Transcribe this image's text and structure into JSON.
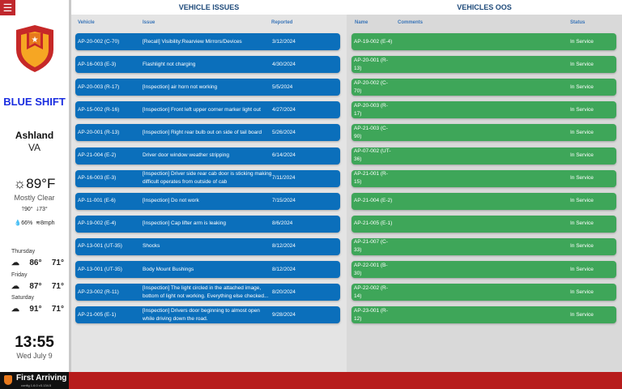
{
  "sidebar": {
    "shift": "BLUE SHIFT",
    "city": "Ashland",
    "state": "VA",
    "temp": "89°F",
    "condition": "Mostly Clear",
    "high": "90°",
    "low": "73°",
    "humidity": "66%",
    "wind": "8mph",
    "forecast": [
      {
        "day": "Thursday",
        "high": "86°",
        "low": "71°"
      },
      {
        "day": "Friday",
        "high": "87°",
        "low": "71°"
      },
      {
        "day": "Saturday",
        "high": "91°",
        "low": "71°"
      }
    ],
    "time": "13:55",
    "date": "Wed July 9"
  },
  "footer": {
    "brand": "First Arriving",
    "version": "config 1.6.0   v3.134.5"
  },
  "issues": {
    "title": "VEHICLE ISSUES",
    "headers": [
      "Vehicle",
      "Issue",
      "Reported"
    ],
    "rows": [
      {
        "vehicle": "AP-20-002 (C-70)",
        "issue": "[Recall] Visibility:Rearview Mirrors/Devices",
        "reported": "3/12/2024"
      },
      {
        "vehicle": "AP-16-003 (E-3)",
        "issue": "Flashlight not charging",
        "reported": "4/30/2024"
      },
      {
        "vehicle": "AP-20-003 (R-17)",
        "issue": "[Inspection] air horn not working",
        "reported": "5/5/2024"
      },
      {
        "vehicle": "AP-15-002 (R-16)",
        "issue": "[Inspection] Front left upper corner marker light out",
        "reported": "4/27/2024"
      },
      {
        "vehicle": "AP-20-001 (R-13)",
        "issue": "[Inspection] Right rear bulb out on side of tail board",
        "reported": "5/26/2024"
      },
      {
        "vehicle": "AP-21-004 (E-2)",
        "issue": "Driver door window weather stripping",
        "reported": "6/14/2024"
      },
      {
        "vehicle": "AP-16-003 (E-3)",
        "issue": "[Inspection] Driver side rear cab door is sticking making difficult operates from outside of cab",
        "reported": "7/11/2024"
      },
      {
        "vehicle": "AP-11-001 (E-6)",
        "issue": "[Inspection] Do not work",
        "reported": "7/15/2024"
      },
      {
        "vehicle": "AP-19-002 (E-4)",
        "issue": "[Inspection] Cap lifter arm is leaking",
        "reported": "8/6/2024"
      },
      {
        "vehicle": "AP-13-001 (UT-35)",
        "issue": "Shocks",
        "reported": "8/12/2024"
      },
      {
        "vehicle": "AP-13-001 (UT-35)",
        "issue": "Body Mount Bushings",
        "reported": "8/12/2024"
      },
      {
        "vehicle": "AP-23-002 (R-11)",
        "issue": "[Inspection] The light circled in the attached image, bottom of light not working. Everything else checked...",
        "reported": "8/20/2024"
      },
      {
        "vehicle": "AP-21-005 (E-1)",
        "issue": "[Inspection] Drivers door beginning to almost open while driving down the road.",
        "reported": "9/28/2024"
      }
    ]
  },
  "oos": {
    "title": "VEHICLES OOS",
    "headers": [
      "Name",
      "Comments",
      "Status"
    ],
    "rows": [
      {
        "name": "AP-19-002 (E-4)",
        "status": "In Service"
      },
      {
        "name": "AP-20-001 (R-13)",
        "status": "In Service"
      },
      {
        "name": "AP-20-002 (C-70)",
        "status": "In Service"
      },
      {
        "name": "AP-20-003 (R-17)",
        "status": "In Service"
      },
      {
        "name": "AP-21-003 (C-90)",
        "status": "In Service"
      },
      {
        "name": "AP-07-002 (UT-36)",
        "status": "In Service"
      },
      {
        "name": "AP-21-001 (R-15)",
        "status": "In Service"
      },
      {
        "name": "AP-21-004 (E-2)",
        "status": "In Service"
      },
      {
        "name": "AP-21-005 (E-1)",
        "status": "In Service"
      },
      {
        "name": "AP-21-007 (C-33)",
        "status": "In Service"
      },
      {
        "name": "AP-22-001 (B-30)",
        "status": "In Service"
      },
      {
        "name": "AP-22-002 (R-14)",
        "status": "In Service"
      },
      {
        "name": "AP-23-001 (R-12)",
        "status": "In Service"
      }
    ]
  }
}
